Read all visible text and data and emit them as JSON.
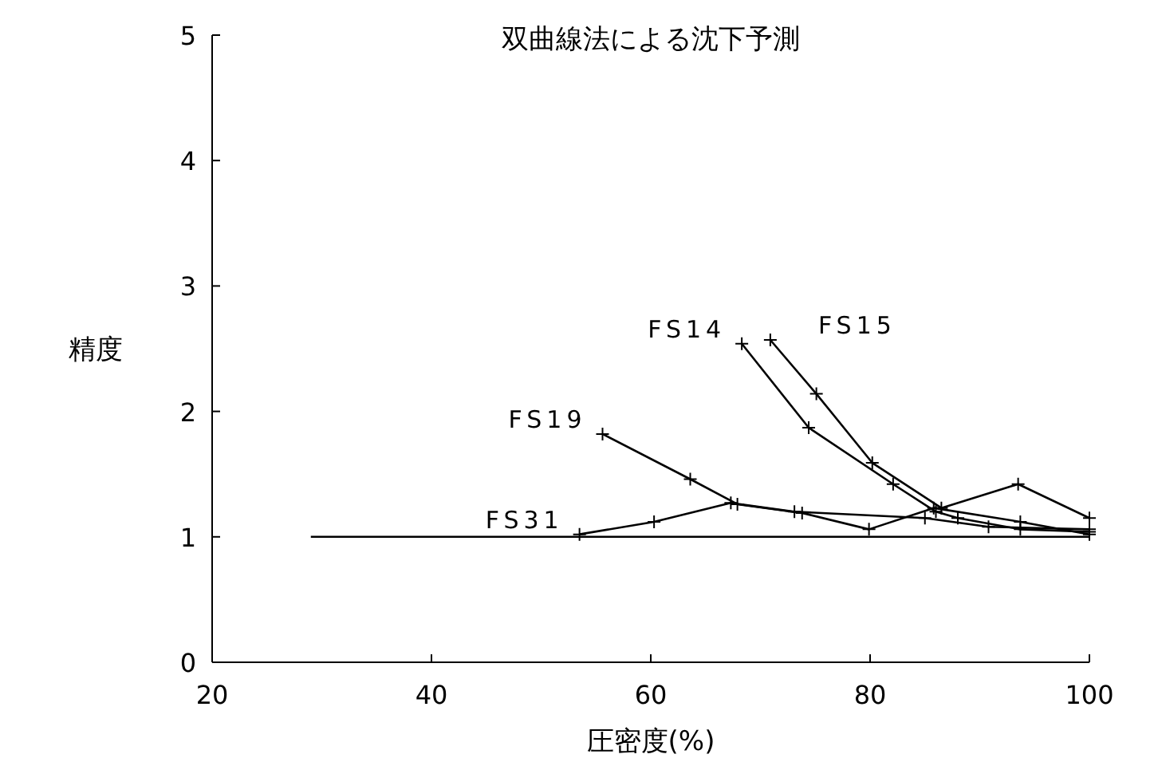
{
  "chart_data": {
    "type": "line",
    "title": "双曲線法による沈下予測",
    "xlabel": "圧密度(%)",
    "ylabel": "精度",
    "xlim": [
      20,
      100
    ],
    "ylim": [
      0,
      5
    ],
    "xticks": [
      20,
      40,
      60,
      80,
      100
    ],
    "yticks": [
      0,
      1,
      2,
      3,
      4,
      5
    ],
    "grid": false,
    "marker": "cross",
    "line_style": "solid",
    "series": [
      {
        "name": "FS14",
        "color": "#000000",
        "x": [
          68.3,
          74.4,
          82.1,
          86,
          88,
          93.7,
          100
        ],
        "values": [
          2.54,
          1.87,
          1.42,
          1.2,
          1.15,
          1.06,
          1.04
        ]
      },
      {
        "name": "FS15",
        "color": "#000000",
        "x": [
          70.9,
          75.1,
          80.2,
          86.5,
          93.5,
          100
        ],
        "values": [
          2.57,
          2.14,
          1.59,
          1.23,
          1.42,
          1.15
        ]
      },
      {
        "name": "FS19",
        "color": "#000000",
        "x": [
          55.6,
          63.6,
          67.9,
          73.8,
          79.9,
          85.8,
          93.7,
          100
        ],
        "values": [
          1.82,
          1.46,
          1.26,
          1.19,
          1.06,
          1.23,
          1.12,
          1.02
        ]
      },
      {
        "name": "FS31",
        "color": "#000000",
        "x": [
          53.5,
          60.3,
          67.3,
          73.1,
          85,
          90.8,
          100
        ],
        "values": [
          1.02,
          1.12,
          1.27,
          1.2,
          1.15,
          1.08,
          1.06
        ]
      },
      {
        "color": "#000000",
        "marker": "none",
        "x": [
          29,
          100
        ],
        "values": [
          1,
          1
        ]
      }
    ]
  }
}
